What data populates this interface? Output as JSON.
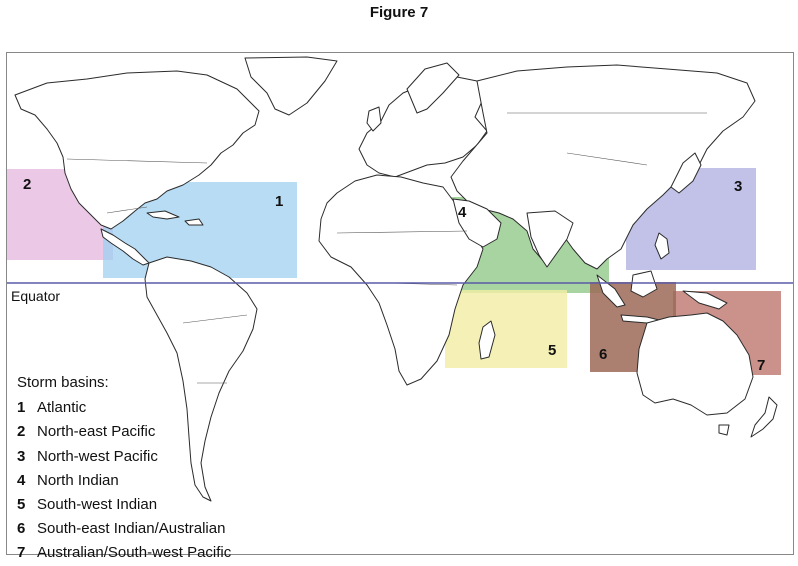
{
  "title": "Figure 7",
  "equator_label": "Equator",
  "legend_heading": "Storm basins:",
  "basins": [
    {
      "num": "1",
      "name": "Atlantic",
      "color": "#9fd0f0"
    },
    {
      "num": "2",
      "name": "North-east Pacific",
      "color": "#e4b5dc"
    },
    {
      "num": "3",
      "name": "North-west Pacific",
      "color": "#b3b3e2"
    },
    {
      "num": "4",
      "name": "North Indian",
      "color": "#92c98a"
    },
    {
      "num": "5",
      "name": "South-west Indian",
      "color": "#f3eea4"
    },
    {
      "num": "6",
      "name": "South-east Indian/Australian",
      "color": "#9c6a58"
    },
    {
      "num": "7",
      "name": "Australian/South-west Pacific",
      "color": "#c27f77"
    }
  ],
  "colors": {
    "equator_line": "#5a5aa8",
    "frame": "#888888",
    "land_outline": "#2b2b2b"
  }
}
